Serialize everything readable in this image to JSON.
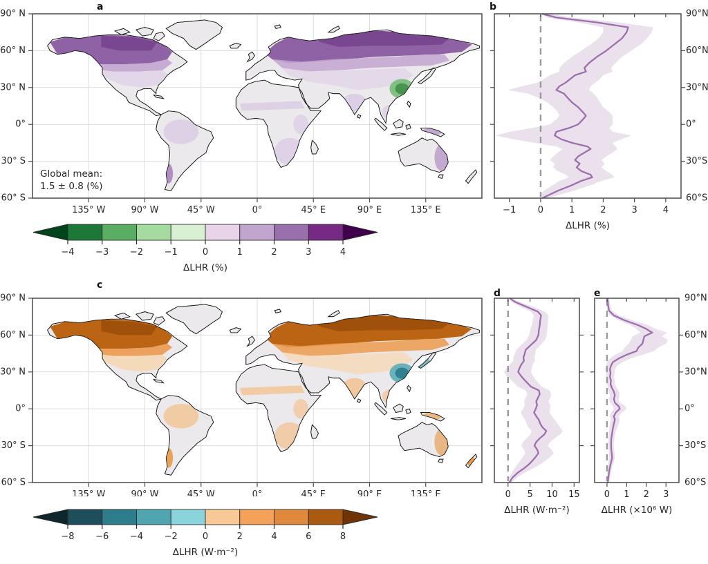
{
  "figure": {
    "background": "#ffffff"
  },
  "shared": {
    "font_color": "#262626",
    "axis_color": "#4a4a4a",
    "grid_color": "#dcdcdc",
    "line_color": "#9e6fae",
    "band_color": "#d8c8df",
    "zero_line_color": "#9a9a9a",
    "map_lat_labels": [
      "90° N",
      "60° N",
      "30° N",
      "0°",
      "30° S",
      "60° S"
    ],
    "map_lon_labels": [
      "135° W",
      "90° W",
      "45° W",
      "0°",
      "45° E",
      "90° E",
      "135° E"
    ],
    "profile_lat_labels": [
      "90°N",
      "60°N",
      "30°N",
      "0°",
      "30°S",
      "60°S"
    ]
  },
  "panels": {
    "a": {
      "label": "a",
      "annotation": [
        "Global mean:",
        "1.5 ± 0.8 (%)"
      ],
      "map_colors": {
        "land": "#ebe9eb",
        "coast": "#141414",
        "boreal": "#8f62a5",
        "boreal_dark": "#76428c",
        "midlat": "#c2a5cf",
        "pale": "#decfe7",
        "accent": "#74bd78",
        "accent_dark": "#43914c",
        "speckle1": "#d8c6e3",
        "speckle2": "#a87fbc"
      }
    },
    "b": {
      "label": "b"
    },
    "c": {
      "label": "c",
      "map_colors": {
        "land": "#ebe9eb",
        "coast": "#141414",
        "boreal": "#bb6514",
        "boreal_dark": "#9a4c08",
        "midlat": "#ec9a4f",
        "pale": "#f8d3a5",
        "accent": "#5cacb6",
        "accent_dark": "#2e7d8c",
        "speckle1": "#f4bd85",
        "speckle2": "#e8963f"
      }
    },
    "d": {
      "label": "d"
    },
    "e": {
      "label": "e"
    }
  },
  "chart_data": [
    {
      "id": "a",
      "type": "map",
      "projection": "equirectangular",
      "extent": {
        "lon": [
          -180,
          180
        ],
        "lat": [
          -60,
          90
        ]
      },
      "annotation": "Global mean: 1.5 ± 0.8 (%)",
      "description": "Relative change in latent heat release; purple = increase (strongest over boreal North America and Eurasia), green = decrease (eastern China)",
      "colorbar": {
        "label": "ΔLHR (%)",
        "ticks": [
          -4,
          -3,
          -2,
          -1,
          0,
          1,
          2,
          3,
          4
        ],
        "tick_labels": [
          "−4",
          "−3",
          "−2",
          "−1",
          "0",
          "1",
          "2",
          "3",
          "4"
        ],
        "colors": [
          "#1b7837",
          "#5aae61",
          "#a6dba0",
          "#d9f0d3",
          "#e7d4e8",
          "#c2a5cf",
          "#9970ab",
          "#762a83"
        ],
        "extend_low_color": "#00441b",
        "extend_high_color": "#40004b"
      }
    },
    {
      "id": "b",
      "type": "line",
      "orientation": "zonal-profile",
      "xlabel": "ΔLHR (%)",
      "xlim": [
        -1.48,
        4.49
      ],
      "xticks": [
        -1,
        0,
        1,
        2,
        3,
        4
      ],
      "xtick_labels": [
        "−1",
        "0",
        "1",
        "2",
        "3",
        "4"
      ],
      "ylim_lat": [
        -60,
        90
      ],
      "zero_line": 0,
      "legend": "zonal mean with uncertainty band",
      "points_format": [
        "latitude",
        "value",
        "band_low",
        "band_high"
      ],
      "points": [
        [
          90,
          0.05,
          0,
          0.3
        ],
        [
          87,
          0.5,
          0.2,
          1
        ],
        [
          83,
          1.8,
          1.2,
          2.5
        ],
        [
          79,
          2.8,
          2,
          3.6
        ],
        [
          75,
          2.75,
          2,
          3.55
        ],
        [
          70,
          2.6,
          1.85,
          3.4
        ],
        [
          65,
          2.35,
          1.6,
          3.2
        ],
        [
          60,
          2.1,
          1.3,
          2.9
        ],
        [
          55,
          1.8,
          1,
          2.6
        ],
        [
          50,
          1.55,
          0.75,
          2.4
        ],
        [
          46,
          1.4,
          0.6,
          2.25
        ],
        [
          43,
          1.45,
          0.6,
          2.3
        ],
        [
          40,
          1.1,
          0.3,
          2
        ],
        [
          37,
          0.95,
          0.1,
          1.9
        ],
        [
          34,
          0.8,
          -0.1,
          1.75
        ],
        [
          31,
          0.6,
          -0.6,
          1.6
        ],
        [
          28,
          0.5,
          -1.05,
          1.55
        ],
        [
          25,
          0.75,
          -0.4,
          1.7
        ],
        [
          22,
          0.85,
          -0.1,
          1.8
        ],
        [
          18,
          1,
          0.2,
          1.9
        ],
        [
          14,
          1.2,
          0.4,
          2
        ],
        [
          10,
          1.35,
          0.55,
          2.2
        ],
        [
          7,
          1.45,
          0.6,
          2.3
        ],
        [
          4,
          1.35,
          0.5,
          2.3
        ],
        [
          0,
          1.2,
          0.3,
          2.3
        ],
        [
          -3,
          0.9,
          -0.3,
          2.2
        ],
        [
          -6,
          0.5,
          -1,
          2.3
        ],
        [
          -9,
          0.45,
          -1.45,
          2.9
        ],
        [
          -12,
          0.65,
          -0.9,
          2.6
        ],
        [
          -15,
          1,
          -0.2,
          2.3
        ],
        [
          -18,
          1.5,
          0.5,
          2.4
        ],
        [
          -20,
          1.6,
          0.7,
          2.45
        ],
        [
          -23,
          1.4,
          0.55,
          2.3
        ],
        [
          -26,
          1.2,
          0.4,
          2.1
        ],
        [
          -29,
          1.1,
          0.3,
          1.95
        ],
        [
          -32,
          1.25,
          0.45,
          2.05
        ],
        [
          -35,
          1.15,
          0.4,
          1.95
        ],
        [
          -38,
          1.3,
          0.55,
          2.1
        ],
        [
          -41,
          1.6,
          0.8,
          2.3
        ],
        [
          -43,
          1.65,
          0.9,
          2.35
        ],
        [
          -46,
          1.3,
          0.6,
          1.95
        ],
        [
          -50,
          0.95,
          0.35,
          1.55
        ],
        [
          -54,
          0.55,
          0.1,
          1.05
        ],
        [
          -57,
          0.3,
          0,
          0.65
        ],
        [
          -60,
          0.05,
          -0.05,
          0.2
        ]
      ]
    },
    {
      "id": "c",
      "type": "map",
      "projection": "equirectangular",
      "extent": {
        "lon": [
          -180,
          180
        ],
        "lat": [
          -60,
          90
        ]
      },
      "description": "Absolute change in latent heat release; orange/brown = increase, teal = decrease (eastern China, Japan)",
      "colorbar": {
        "label": "ΔLHR (W·m⁻²)",
        "ticks": [
          -8,
          -6,
          -4,
          -2,
          0,
          2,
          4,
          6,
          8
        ],
        "tick_labels": [
          "−8",
          "−6",
          "−4",
          "−2",
          "0",
          "2",
          "4",
          "6",
          "8"
        ],
        "colors": [
          "#1d4e5a",
          "#2e7d8c",
          "#4fa5b0",
          "#8bd4dc",
          "#f8c996",
          "#f4a259",
          "#e0883c",
          "#ab5a11"
        ],
        "extend_low_color": "#0e262c",
        "extend_high_color": "#6f3305"
      }
    },
    {
      "id": "d",
      "type": "line",
      "orientation": "zonal-profile",
      "xlabel": "ΔLHR (W·m⁻²)",
      "xlim": [
        -3.1,
        16.2
      ],
      "xticks": [
        0,
        5,
        10,
        15
      ],
      "xtick_labels": [
        "0",
        "5",
        "10",
        "15"
      ],
      "ylim_lat": [
        -60,
        90
      ],
      "zero_line": 0,
      "legend": "zonal mean with uncertainty band",
      "points_format": [
        "latitude",
        "value",
        "band_low",
        "band_high"
      ],
      "points": [
        [
          90,
          0.4,
          0.1,
          0.9
        ],
        [
          87,
          1.6,
          0.8,
          2.6
        ],
        [
          83,
          4.2,
          2.8,
          5.8
        ],
        [
          79,
          6.8,
          5.2,
          8.4
        ],
        [
          76,
          7.5,
          5.9,
          9.2
        ],
        [
          72,
          7.3,
          5.6,
          9.1
        ],
        [
          68,
          7.2,
          5.4,
          9
        ],
        [
          64,
          7,
          5,
          8.9
        ],
        [
          60,
          6.9,
          4.8,
          8.8
        ],
        [
          56,
          6.4,
          4.2,
          8.4
        ],
        [
          52,
          5.2,
          3,
          7.4
        ],
        [
          48,
          4,
          1.9,
          6.3
        ],
        [
          45,
          3.8,
          1.6,
          6.2
        ],
        [
          42,
          3.5,
          1.2,
          6
        ],
        [
          39,
          3.6,
          1.2,
          6.1
        ],
        [
          36,
          3,
          0.4,
          5.6
        ],
        [
          33,
          2.6,
          -0.3,
          5.4
        ],
        [
          30,
          2.3,
          -0.9,
          5.2
        ],
        [
          27,
          2.9,
          -0.4,
          5.6
        ],
        [
          24,
          3.6,
          0.5,
          6.2
        ],
        [
          21,
          4.4,
          1.4,
          6.9
        ],
        [
          18,
          5.2,
          2.2,
          7.6
        ],
        [
          15,
          7,
          4,
          9.4
        ],
        [
          12,
          7.2,
          4.4,
          9.8
        ],
        [
          9,
          6.8,
          4,
          9.6
        ],
        [
          6,
          6.4,
          3.6,
          9.2
        ],
        [
          3,
          6.6,
          3.8,
          9.6
        ],
        [
          0,
          6.3,
          3.4,
          9.6
        ],
        [
          -3,
          5.9,
          2.9,
          9.4
        ],
        [
          -6,
          6.4,
          3.3,
          10
        ],
        [
          -9,
          7,
          3.9,
          10.6
        ],
        [
          -12,
          7.3,
          4.2,
          11.2
        ],
        [
          -15,
          7.8,
          4.6,
          11.8
        ],
        [
          -18,
          8.7,
          5.4,
          12.4
        ],
        [
          -21,
          8.2,
          5,
          11.8
        ],
        [
          -24,
          7.2,
          4.2,
          10.6
        ],
        [
          -27,
          6.4,
          3.4,
          9.6
        ],
        [
          -30,
          6,
          3,
          9
        ],
        [
          -33,
          6.6,
          3.6,
          9.8
        ],
        [
          -36,
          6.9,
          3.9,
          10.4
        ],
        [
          -39,
          6.3,
          3.4,
          9.6
        ],
        [
          -42,
          5.6,
          2.8,
          8.6
        ],
        [
          -45,
          4.8,
          2.2,
          7.4
        ],
        [
          -48,
          3.8,
          1.6,
          6
        ],
        [
          -52,
          2.2,
          0.8,
          3.8
        ],
        [
          -56,
          1,
          0.2,
          2
        ],
        [
          -60,
          0.3,
          0,
          0.8
        ]
      ]
    },
    {
      "id": "e",
      "type": "line",
      "orientation": "zonal-profile",
      "xlabel": "ΔLHR (×10⁶ W)",
      "xlim": [
        -0.63,
        3.66
      ],
      "xticks": [
        0,
        1,
        2,
        3
      ],
      "xtick_labels": [
        "0",
        "1",
        "2",
        "3"
      ],
      "ylim_lat": [
        -60,
        90
      ],
      "zero_line": 0,
      "legend": "zonal mean with uncertainty band",
      "points_format": [
        "latitude",
        "value",
        "band_low",
        "band_high"
      ],
      "points": [
        [
          90,
          0.03,
          0,
          0.1
        ],
        [
          85,
          0.05,
          0,
          0.15
        ],
        [
          80,
          0.1,
          0.02,
          0.25
        ],
        [
          76,
          0.35,
          0.15,
          0.6
        ],
        [
          72,
          0.9,
          0.6,
          1.3
        ],
        [
          68,
          1.6,
          1.2,
          2.1
        ],
        [
          65,
          2,
          1.5,
          2.5
        ],
        [
          62,
          2.3,
          1.7,
          3.05
        ],
        [
          59,
          1.9,
          1.3,
          2.8
        ],
        [
          56,
          1.85,
          1.2,
          3.1
        ],
        [
          53,
          1.8,
          1.1,
          3
        ],
        [
          50,
          1.6,
          0.9,
          2.6
        ],
        [
          47,
          1.5,
          0.8,
          2.4
        ],
        [
          44,
          1,
          0.4,
          1.8
        ],
        [
          41,
          0.6,
          0.15,
          1.2
        ],
        [
          38,
          0.3,
          0,
          0.8
        ],
        [
          35,
          0.2,
          -0.05,
          0.5
        ],
        [
          32,
          0.15,
          -0.1,
          0.4
        ],
        [
          29,
          0.18,
          -0.05,
          0.4
        ],
        [
          26,
          0.15,
          -0.05,
          0.35
        ],
        [
          23,
          0.2,
          0,
          0.4
        ],
        [
          20,
          0.18,
          0,
          0.4
        ],
        [
          17,
          0.25,
          0.05,
          0.5
        ],
        [
          14,
          0.35,
          0.1,
          0.6
        ],
        [
          11,
          0.4,
          0.15,
          0.65
        ],
        [
          8,
          0.35,
          0.1,
          0.6
        ],
        [
          5,
          0.4,
          0.15,
          0.65
        ],
        [
          2,
          0.6,
          0.3,
          0.95
        ],
        [
          0,
          0.65,
          0.35,
          1
        ],
        [
          -3,
          0.45,
          0.2,
          0.75
        ],
        [
          -6,
          0.35,
          0.15,
          0.6
        ],
        [
          -9,
          0.4,
          0.2,
          0.65
        ],
        [
          -12,
          0.35,
          0.15,
          0.6
        ],
        [
          -16,
          0.3,
          0.12,
          0.5
        ],
        [
          -20,
          0.26,
          0.1,
          0.42
        ],
        [
          -24,
          0.22,
          0.08,
          0.38
        ],
        [
          -28,
          0.21,
          0.07,
          0.35
        ],
        [
          -32,
          0.21,
          0.08,
          0.35
        ],
        [
          -36,
          0.24,
          0.1,
          0.38
        ],
        [
          -40,
          0.26,
          0.1,
          0.4
        ],
        [
          -44,
          0.2,
          0.07,
          0.33
        ],
        [
          -48,
          0.14,
          0.04,
          0.25
        ],
        [
          -52,
          0.1,
          0.02,
          0.2
        ],
        [
          -56,
          0.07,
          0.01,
          0.15
        ],
        [
          -60,
          0.04,
          0,
          0.1
        ]
      ]
    }
  ]
}
